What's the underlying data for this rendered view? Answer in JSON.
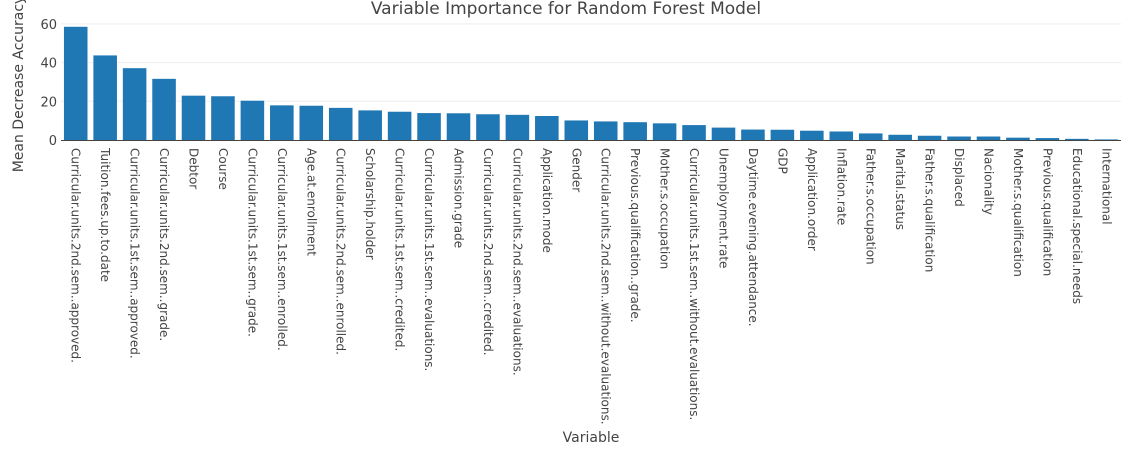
{
  "chart_data": {
    "type": "bar",
    "title": "Variable Importance for Random Forest Model",
    "xlabel": "Variable",
    "ylabel": "Mean Decrease Accuracy",
    "ylim": [
      0,
      62
    ],
    "yticks": [
      0,
      20,
      40,
      60
    ],
    "grid": true,
    "bar_color": "#1f77b4",
    "categories": [
      "Curricular.units.2nd.sem..approved.",
      "Tuition.fees.up.to.date",
      "Curricular.units.1st.sem..approved.",
      "Curricular.units.2nd.sem..grade.",
      "Debtor",
      "Course",
      "Curricular.units.1st.sem..grade.",
      "Curricular.units.1st.sem..enrolled.",
      "Age.at.enrollment",
      "Curricular.units.2nd.sem..enrolled.",
      "Scholarship.holder",
      "Curricular.units.1st.sem..credited.",
      "Curricular.units.1st.sem..evaluations.",
      "Admission.grade",
      "Curricular.units.2nd.sem..credited.",
      "Curricular.units.2nd.sem..evaluations.",
      "Application.mode",
      "Gender",
      "Curricular.units.2nd.sem..without.evaluations.",
      "Previous.qualification..grade.",
      "Mother.s.occupation",
      "Curricular.units.1st.sem..without.evaluations.",
      "Unemployment.rate",
      "Daytime.evening.attendance.",
      "GDP",
      "Application.order",
      "Inflation.rate",
      "Father.s.occupation",
      "Marital.status",
      "Father.s.qualification",
      "Displaced",
      "Nacionality",
      "Mother.s.qualification",
      "Previous.qualification",
      "Educational.special.needs",
      "International"
    ],
    "values": [
      58.5,
      43.7,
      37.1,
      31.6,
      22.9,
      22.6,
      20.3,
      17.9,
      17.7,
      16.6,
      15.3,
      14.6,
      13.9,
      13.8,
      13.3,
      13.0,
      12.4,
      10.1,
      9.6,
      9.2,
      8.6,
      7.7,
      6.4,
      5.4,
      5.3,
      4.8,
      4.4,
      3.4,
      2.7,
      2.2,
      1.8,
      1.8,
      1.2,
      1.0,
      0.6,
      0.3
    ]
  }
}
